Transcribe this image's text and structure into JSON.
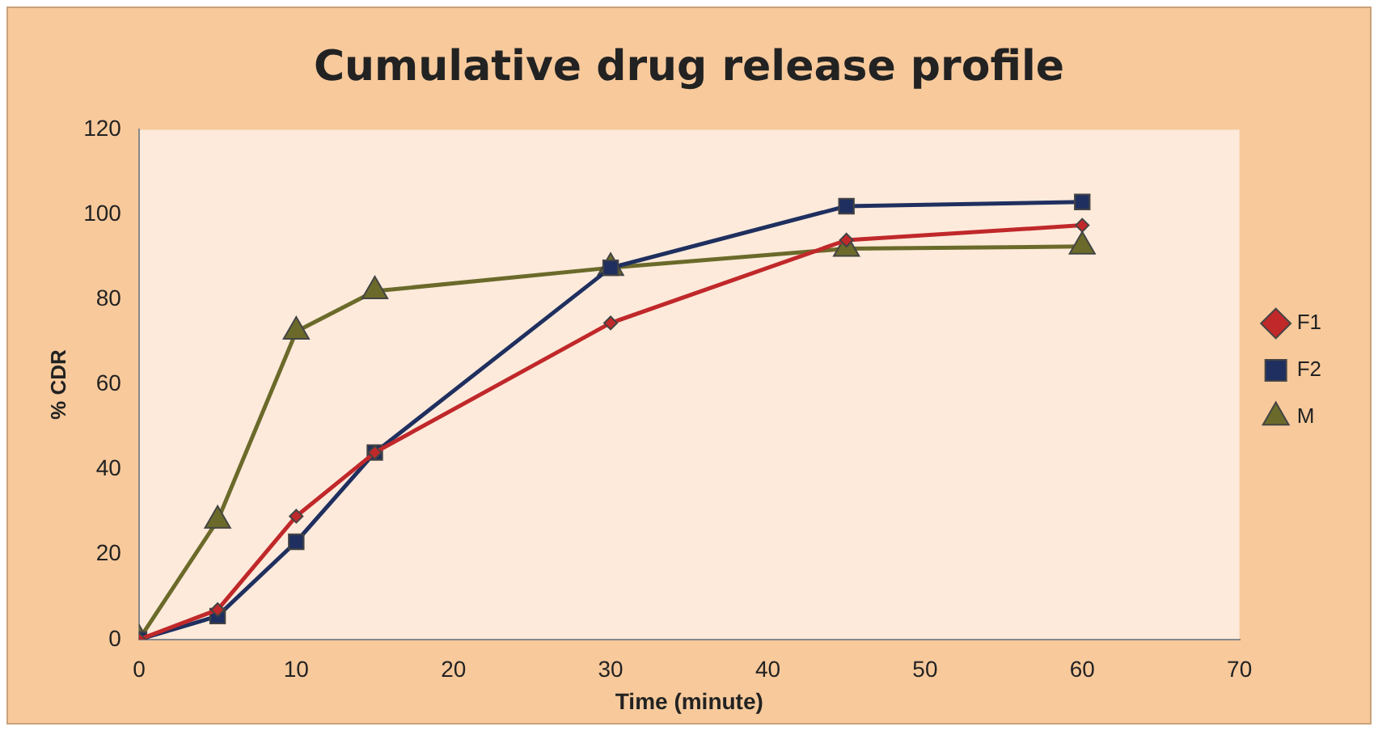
{
  "chart_data": {
    "type": "line",
    "title": "Cumulative drug release profile",
    "xlabel": "Time (minute)",
    "ylabel": "% CDR",
    "x": [
      0,
      5,
      10,
      15,
      30,
      45,
      60
    ],
    "series": [
      {
        "name": "F1",
        "color": "#c0282a",
        "marker": "diamond",
        "values": [
          0,
          7,
          29,
          44,
          74.5,
          94,
          97.5
        ]
      },
      {
        "name": "F2",
        "color": "#1f2f5f",
        "marker": "square",
        "values": [
          0,
          5.5,
          23,
          44,
          87.5,
          102,
          103
        ]
      },
      {
        "name": "M",
        "color": "#6b6a2a",
        "marker": "triangle",
        "values": [
          0,
          28,
          72.5,
          82,
          87.5,
          92,
          92.5
        ]
      }
    ],
    "xlim": [
      0,
      70
    ],
    "xticks": [
      0,
      10,
      20,
      30,
      40,
      50,
      60,
      70
    ],
    "ylim": [
      0,
      120
    ],
    "yticks": [
      0,
      20,
      40,
      60,
      80,
      100,
      120
    ],
    "grid": false,
    "legend": "right",
    "line_style": "solid"
  }
}
